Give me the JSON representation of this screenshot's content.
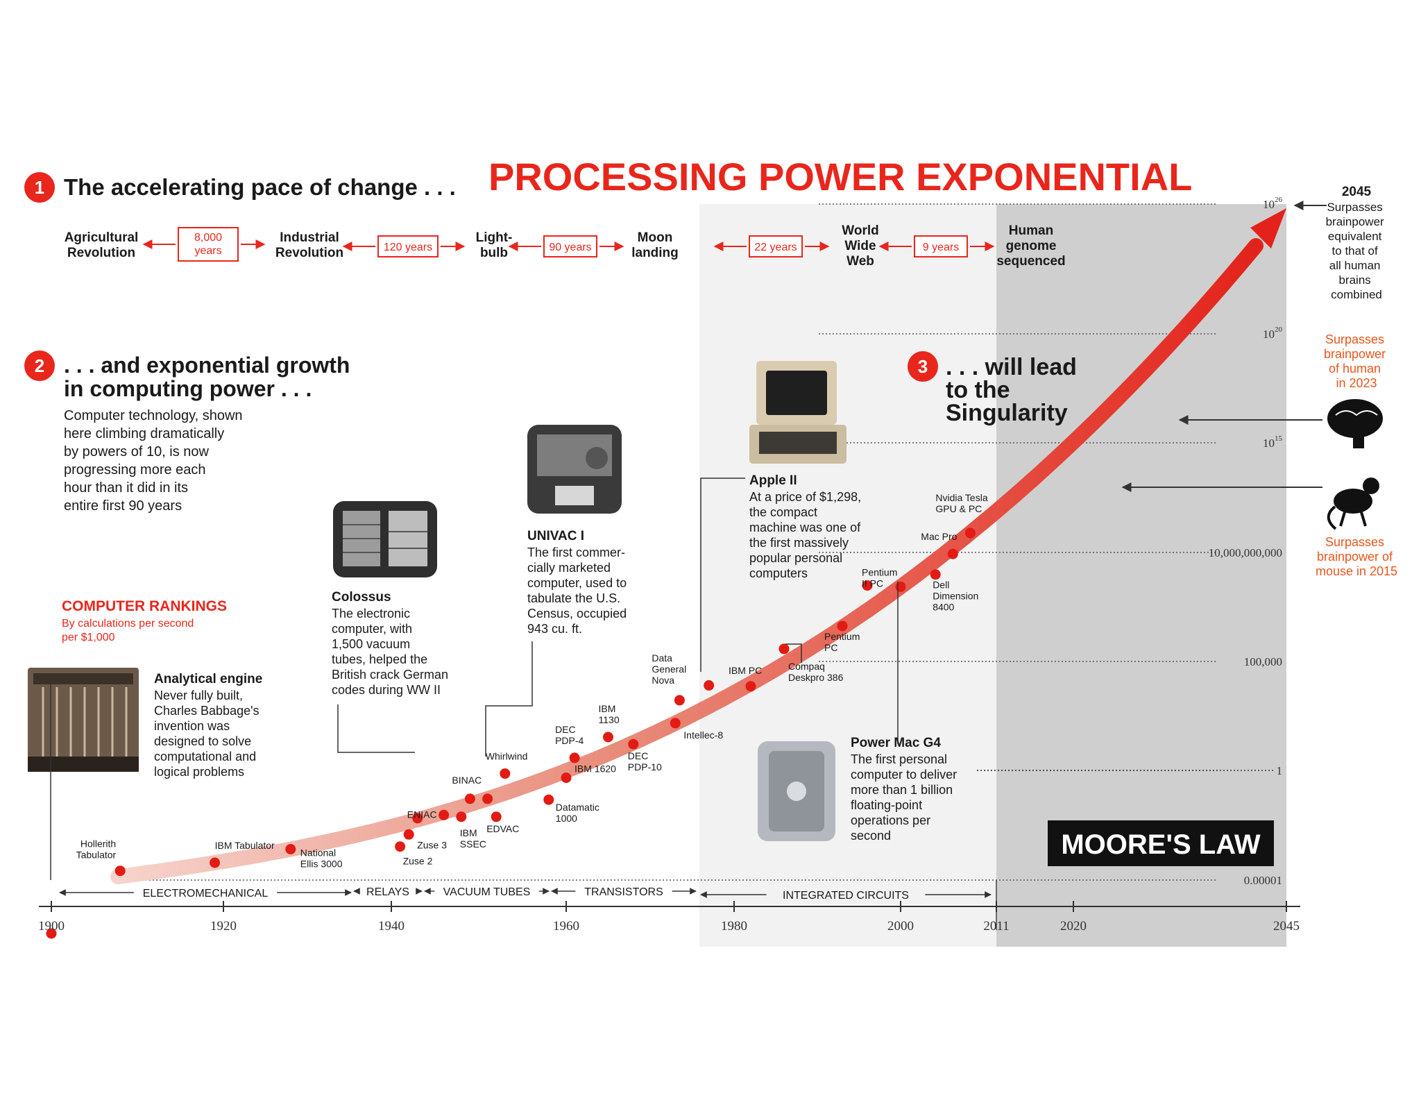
{
  "headline": "PROCESSING POWER EXPONENTIAL",
  "badge": "MOORE'S LAW",
  "section1": {
    "number": "1",
    "title": "The accelerating pace of change . . .",
    "milestones": [
      {
        "lines": [
          "Agricultural",
          "Revolution"
        ]
      },
      {
        "lines": [
          "Industrial",
          "Revolution"
        ]
      },
      {
        "lines": [
          "Light-",
          "bulb"
        ]
      },
      {
        "lines": [
          "Moon",
          "landing"
        ]
      },
      {
        "lines": [
          "World",
          "Wide",
          "Web"
        ]
      },
      {
        "lines": [
          "Human",
          "genome",
          "sequenced"
        ]
      }
    ],
    "gaps": [
      {
        "lines": [
          "8,000",
          "years"
        ]
      },
      {
        "lines": [
          "120 years"
        ]
      },
      {
        "lines": [
          "90 years"
        ]
      },
      {
        "lines": [
          "22 years"
        ]
      },
      {
        "lines": [
          "9 years"
        ]
      }
    ]
  },
  "section2": {
    "number": "2",
    "title_lines": [
      ". . . and exponential growth",
      "in computing power . . ."
    ],
    "body_lines": [
      "Computer technology, shown",
      "here climbing dramatically",
      "by powers of 10, is now",
      "progressing more each",
      "hour than it did in its",
      "entire first 90 years"
    ]
  },
  "section3": {
    "number": "3",
    "title_lines": [
      ". . . will lead",
      "to the",
      "Singularity"
    ]
  },
  "rankings": {
    "title": "COMPUTER RANKINGS",
    "subtitle_lines": [
      "By calculations per second",
      "per $1,000"
    ]
  },
  "callouts": {
    "analytical": {
      "title": "Analytical engine",
      "lines": [
        "Never fully built,",
        "Charles Babbage's",
        "invention was",
        "designed to solve",
        "computational and",
        "logical problems"
      ]
    },
    "colossus": {
      "title": "Colossus",
      "lines": [
        "The electronic",
        "computer, with",
        "1,500 vacuum",
        "tubes, helped the",
        "British crack German",
        "codes during WW II"
      ]
    },
    "univac": {
      "title": "UNIVAC I",
      "lines": [
        "The first commer-",
        "cially marketed",
        "computer, used to",
        "tabulate the U.S.",
        "Census, occupied",
        "943 cu. ft."
      ]
    },
    "apple": {
      "title": "Apple II",
      "lines": [
        "At a price of $1,298,",
        "the compact",
        "machine was one of",
        "the first massively",
        "popular personal",
        "computers"
      ]
    },
    "powermac": {
      "title": "Power Mac G4",
      "lines": [
        "The first personal",
        "computer to deliver",
        "more than 1 billion",
        "floating-point",
        "operations per",
        "second"
      ]
    }
  },
  "right_notes": {
    "year2045": "2045",
    "y2045_lines": [
      "Surpasses",
      "brainpower",
      "equivalent",
      "to that of",
      "all human",
      "brains",
      "combined"
    ],
    "human_lines": [
      "Surpasses",
      "brainpower",
      "of human",
      "in 2023"
    ],
    "mouse_lines": [
      "Surpasses",
      "brainpower of",
      "mouse in 2015"
    ]
  },
  "eras": [
    {
      "label": "ELECTROMECHANICAL"
    },
    {
      "label": "RELAYS"
    },
    {
      "label": "VACUUM TUBES"
    },
    {
      "label": "TRANSISTORS"
    },
    {
      "label": "INTEGRATED CIRCUITS"
    }
  ],
  "chart_data": {
    "type": "scatter",
    "yscale": "log",
    "xlabel": "",
    "ylabel": "",
    "x_ticks": [
      1900,
      1920,
      1940,
      1960,
      1980,
      2000,
      2011,
      2020,
      2045
    ],
    "x_tick_labels": [
      "1900",
      "1920",
      "1940",
      "1960",
      "1980",
      "2000",
      "2011",
      "2020",
      "2045"
    ],
    "y_ticks": [
      {
        "label": "0.00001"
      },
      {
        "label": "1"
      },
      {
        "label": "100,000"
      },
      {
        "label": "10,000,000,000"
      },
      {
        "label": "10",
        "exp": "15"
      },
      {
        "label": "10",
        "exp": "20"
      },
      {
        "label": "10",
        "exp": "26"
      }
    ],
    "points": [
      {
        "year": 1900,
        "lines": []
      },
      {
        "year": 1908,
        "lines": [
          "Hollerith",
          "Tabulator"
        ]
      },
      {
        "year": 1919,
        "lines": [
          "IBM Tabulator"
        ]
      },
      {
        "year": 1928,
        "lines": [
          "National",
          "Ellis 3000"
        ]
      },
      {
        "year": 1941,
        "lines": [
          "Zuse 2"
        ]
      },
      {
        "year": 1942,
        "lines": [
          "Zuse 3"
        ]
      },
      {
        "year": 1943,
        "lines": []
      },
      {
        "year": 1946,
        "lines": [
          "ENIAC"
        ]
      },
      {
        "year": 1948,
        "lines": [
          "IBM",
          "SSEC"
        ]
      },
      {
        "year": 1949,
        "lines": [
          "BINAC"
        ]
      },
      {
        "year": 1951,
        "lines": []
      },
      {
        "year": 1952,
        "lines": [
          "EDVAC"
        ]
      },
      {
        "year": 1953,
        "lines": [
          "Whirlwind"
        ]
      },
      {
        "year": 1958,
        "lines": [
          "Datamatic",
          "1000"
        ]
      },
      {
        "year": 1960,
        "lines": [
          "IBM 1620"
        ]
      },
      {
        "year": 1961,
        "lines": [
          "DEC",
          "PDP-4"
        ]
      },
      {
        "year": 1965,
        "lines": [
          "IBM",
          "1130"
        ]
      },
      {
        "year": 1968,
        "lines": [
          "DEC",
          "PDP-10"
        ]
      },
      {
        "year": 1973,
        "lines": [
          "Intellec-8"
        ]
      },
      {
        "year": 1973.5,
        "lines": [
          "Data",
          "General",
          "Nova"
        ]
      },
      {
        "year": 1977,
        "lines": []
      },
      {
        "year": 1982,
        "lines": [
          "IBM PC"
        ]
      },
      {
        "year": 1986,
        "lines": [
          "Compaq",
          "Deskpro 386"
        ]
      },
      {
        "year": 1993,
        "lines": [
          "Pentium",
          "PC"
        ]
      },
      {
        "year": 1996,
        "lines": [
          "Pentium",
          "II PC"
        ]
      },
      {
        "year": 2000,
        "lines": []
      },
      {
        "year": 2004,
        "lines": [
          "Dell",
          "Dimension",
          "8400"
        ]
      },
      {
        "year": 2006,
        "lines": [
          "Mac Pro"
        ]
      },
      {
        "year": 2008,
        "lines": [
          "Nvidia Tesla",
          "GPU & PC"
        ]
      }
    ]
  }
}
